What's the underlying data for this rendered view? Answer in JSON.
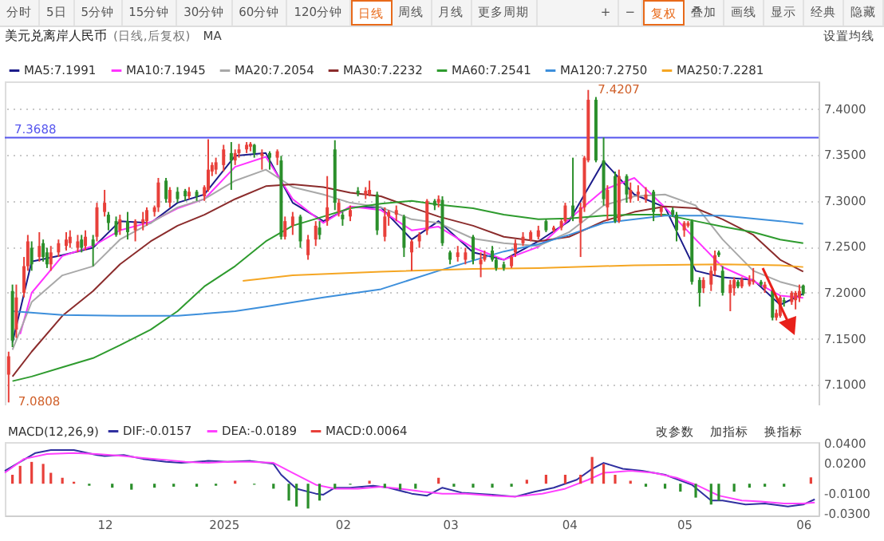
{
  "chart_data": [
    {
      "type": "candlestick",
      "title": "美元兑离岸人民币",
      "subtitle": "(日线,后复权)",
      "annotations": [
        "分时",
        "5日",
        "5分钟",
        "15分钟",
        "30分钟",
        "60分钟",
        "120分钟",
        "日线",
        "周线",
        "月线",
        "更多周期",
        "+",
        "−",
        "复权",
        "叠加",
        "画线",
        "显示",
        "经典",
        "隐藏",
        "MA",
        "设置均线",
        {
          "text": "7.4207",
          "x": "2025-04-06",
          "y": 7.4207
        },
        {
          "text": "7.0808",
          "x": "2024-11-06",
          "y": 7.0808
        }
      ],
      "x": [
        "2024-11-06",
        "2024-11-07",
        "2024-11-08",
        "2024-11-10",
        "2024-11-11",
        "2024-11-12",
        "2024-11-14",
        "2024-11-15",
        "2024-11-16",
        "2024-11-17",
        "2024-11-19",
        "2024-11-21",
        "2024-11-22",
        "2024-11-24",
        "2024-11-25",
        "2024-11-26",
        "2024-11-28",
        "2024-11-29",
        "2024-12-01",
        "2024-12-02",
        "2024-12-04",
        "2024-12-05",
        "2024-12-07",
        "2024-12-09",
        "2024-12-11",
        "2024-12-12",
        "2024-12-14",
        "2024-12-15",
        "2024-12-17",
        "2024-12-18",
        "2024-12-20",
        "2024-12-22",
        "2024-12-23",
        "2024-12-25",
        "2024-12-27",
        "2024-12-28",
        "2024-12-29",
        "2024-12-30",
        "2025-01-01",
        "2025-01-03",
        "2025-01-04",
        "2025-01-05",
        "2025-01-07",
        "2025-01-08",
        "2025-01-09",
        "2025-01-11",
        "2025-01-13",
        "2025-01-15",
        "2025-01-16",
        "2025-01-17",
        "2025-01-19",
        "2025-01-21",
        "2025-01-23",
        "2025-01-25",
        "2025-01-26",
        "2025-01-28",
        "2025-01-30",
        "2025-01-31",
        "2025-02-01",
        "2025-02-03",
        "2025-02-05",
        "2025-02-07",
        "2025-02-08",
        "2025-02-10",
        "2025-02-12",
        "2025-02-13",
        "2025-02-15",
        "2025-02-17",
        "2025-02-19",
        "2025-02-21",
        "2025-02-23",
        "2025-02-25",
        "2025-02-26",
        "2025-02-27",
        "2025-03-01",
        "2025-03-03",
        "2025-03-05",
        "2025-03-07",
        "2025-03-09",
        "2025-03-10",
        "2025-03-12",
        "2025-03-13",
        "2025-03-15",
        "2025-03-17",
        "2025-03-18",
        "2025-03-20",
        "2025-03-22",
        "2025-03-24",
        "2025-03-26",
        "2025-03-28",
        "2025-03-30",
        "2025-03-31",
        "2025-04-02",
        "2025-04-04",
        "2025-04-05",
        "2025-04-06",
        "2025-04-08",
        "2025-04-10",
        "2025-04-11",
        "2025-04-13",
        "2025-04-14",
        "2025-04-16",
        "2025-04-17",
        "2025-04-19",
        "2025-04-21",
        "2025-04-23",
        "2025-04-25",
        "2025-04-28",
        "2025-04-29",
        "2025-05-01",
        "2025-05-02",
        "2025-05-03",
        "2025-05-05",
        "2025-05-06",
        "2025-05-08",
        "2025-05-09",
        "2025-05-10",
        "2025-05-11",
        "2025-05-13",
        "2025-05-14",
        "2025-05-15",
        "2025-05-16",
        "2025-05-18",
        "2025-05-19",
        "2025-05-21",
        "2025-05-22",
        "2025-05-24",
        "2025-05-25",
        "2025-05-26",
        "2025-05-27",
        "2025-05-29",
        "2025-05-30",
        "2025-05-31",
        "2025-06-01"
      ],
      "ohlc": [
        [
          7.111,
          7.136,
          7.0808,
          7.131
        ],
        [
          7.202,
          7.209,
          7.141,
          7.148
        ],
        [
          7.16,
          7.209,
          7.151,
          7.195
        ],
        [
          7.2,
          7.239,
          7.195,
          7.229
        ],
        [
          7.229,
          7.263,
          7.224,
          7.256
        ],
        [
          7.249,
          7.256,
          7.224,
          7.231
        ],
        [
          7.239,
          7.266,
          7.234,
          7.251
        ],
        [
          7.254,
          7.258,
          7.234,
          7.239
        ],
        [
          7.244,
          7.249,
          7.227,
          7.231
        ],
        [
          7.231,
          7.251,
          7.224,
          7.244
        ],
        [
          7.244,
          7.258,
          7.239,
          7.254
        ],
        [
          7.251,
          7.266,
          7.246,
          7.258
        ],
        [
          7.254,
          7.268,
          7.249,
          7.261
        ],
        [
          7.249,
          7.263,
          7.244,
          7.256
        ],
        [
          7.258,
          7.263,
          7.244,
          7.249
        ],
        [
          7.251,
          7.268,
          7.246,
          7.261
        ],
        [
          7.258,
          7.263,
          7.229,
          7.251
        ],
        [
          7.261,
          7.298,
          7.256,
          7.293
        ],
        [
          7.288,
          7.312,
          7.283,
          7.298
        ],
        [
          7.285,
          7.288,
          7.268,
          7.276
        ],
        [
          7.278,
          7.283,
          7.261,
          7.263
        ],
        [
          7.268,
          7.285,
          7.263,
          7.28
        ],
        [
          7.278,
          7.288,
          7.258,
          7.266
        ],
        [
          7.268,
          7.28,
          7.256,
          7.278
        ],
        [
          7.276,
          7.288,
          7.268,
          7.28
        ],
        [
          7.278,
          7.293,
          7.273,
          7.29
        ],
        [
          7.288,
          7.295,
          7.283,
          7.293
        ],
        [
          7.293,
          7.325,
          7.288,
          7.32
        ],
        [
          7.322,
          7.325,
          7.298,
          7.302
        ],
        [
          7.298,
          7.315,
          7.293,
          7.312
        ],
        [
          7.31,
          7.315,
          7.298,
          7.302
        ],
        [
          7.311,
          7.313,
          7.3,
          7.305
        ],
        [
          7.305,
          7.315,
          7.302,
          7.31
        ],
        [
          7.31,
          7.312,
          7.3,
          7.305
        ],
        [
          7.305,
          7.317,
          7.3,
          7.315
        ],
        [
          7.312,
          7.367,
          7.31,
          7.334
        ],
        [
          7.332,
          7.342,
          7.327,
          7.339
        ],
        [
          7.334,
          7.347,
          7.329,
          7.342
        ],
        [
          7.339,
          7.361,
          7.332,
          7.356
        ],
        [
          7.352,
          7.364,
          7.312,
          7.344
        ],
        [
          7.344,
          7.356,
          7.339,
          7.352
        ],
        [
          7.352,
          7.362,
          7.347,
          7.356
        ],
        [
          7.356,
          7.364,
          7.352,
          7.361
        ],
        [
          7.359,
          7.364,
          7.354,
          7.362
        ],
        [
          7.361,
          7.362,
          7.347,
          7.352
        ],
        [
          7.349,
          7.356,
          7.334,
          7.352
        ],
        [
          7.352,
          7.354,
          7.334,
          7.347
        ],
        [
          7.347,
          7.356,
          7.339,
          7.354
        ],
        [
          7.344,
          7.349,
          7.258,
          7.261
        ],
        [
          7.261,
          7.283,
          7.258,
          7.278
        ],
        [
          7.273,
          7.288,
          7.263,
          7.283
        ],
        [
          7.283,
          7.285,
          7.249,
          7.256
        ],
        [
          7.241,
          7.263,
          7.236,
          7.258
        ],
        [
          7.258,
          7.278,
          7.251,
          7.273
        ],
        [
          7.271,
          7.278,
          7.258,
          7.263
        ],
        [
          7.278,
          7.327,
          7.273,
          7.293
        ],
        [
          7.356,
          7.366,
          7.29,
          7.298
        ],
        [
          7.288,
          7.302,
          7.283,
          7.298
        ],
        [
          7.285,
          7.288,
          7.273,
          7.28
        ],
        [
          7.283,
          7.295,
          7.278,
          7.29
        ],
        [
          7.311,
          7.315,
          7.305,
          7.308
        ],
        [
          7.307,
          7.315,
          7.302,
          7.311
        ],
        [
          7.307,
          7.322,
          7.305,
          7.312
        ],
        [
          7.307,
          7.31,
          7.263,
          7.268
        ],
        [
          7.261,
          7.293,
          7.256,
          7.283
        ],
        [
          7.283,
          7.29,
          7.273,
          7.288
        ],
        [
          7.285,
          7.295,
          7.278,
          7.29
        ],
        [
          7.283,
          7.285,
          7.239,
          7.249
        ],
        [
          7.244,
          7.258,
          7.224,
          7.256
        ],
        [
          7.256,
          7.266,
          7.249,
          7.263
        ],
        [
          7.268,
          7.302,
          7.263,
          7.3
        ],
        [
          7.3,
          7.302,
          7.29,
          7.295
        ],
        [
          7.298,
          7.306,
          7.293,
          7.302
        ],
        [
          7.301,
          7.305,
          7.251,
          7.254
        ],
        [
          7.244,
          7.246,
          7.231,
          7.236
        ],
        [
          7.239,
          7.251,
          7.234,
          7.244
        ],
        [
          7.236,
          7.249,
          7.231,
          7.244
        ],
        [
          7.261,
          7.263,
          7.231,
          7.236
        ],
        [
          7.231,
          7.244,
          7.217,
          7.236
        ],
        [
          7.236,
          7.246,
          7.234,
          7.241
        ],
        [
          7.246,
          7.251,
          7.234,
          7.236
        ],
        [
          7.236,
          7.239,
          7.224,
          7.227
        ],
        [
          7.231,
          7.234,
          7.224,
          7.227
        ],
        [
          7.229,
          7.241,
          7.227,
          7.239
        ],
        [
          7.244,
          7.258,
          7.239,
          7.254
        ],
        [
          7.254,
          7.266,
          7.251,
          7.261
        ],
        [
          7.258,
          7.268,
          7.256,
          7.266
        ],
        [
          7.261,
          7.273,
          7.258,
          7.268
        ],
        [
          7.278,
          7.28,
          7.266,
          7.268
        ],
        [
          7.268,
          7.273,
          7.266,
          7.271
        ],
        [
          7.271,
          7.28,
          7.268,
          7.278
        ],
        [
          7.278,
          7.298,
          7.276,
          7.295
        ],
        [
          7.295,
          7.347,
          7.278,
          7.283
        ],
        [
          7.276,
          7.298,
          7.239,
          7.293
        ],
        [
          7.293,
          7.349,
          7.288,
          7.347
        ],
        [
          7.344,
          7.4207,
          7.342,
          7.41
        ],
        [
          7.41,
          7.413,
          7.342,
          7.344
        ],
        [
          7.344,
          7.369,
          7.295,
          7.302
        ],
        [
          7.293,
          7.317,
          7.278,
          7.312
        ],
        [
          7.327,
          7.332,
          7.276,
          7.278
        ],
        [
          7.278,
          7.334,
          7.276,
          7.327
        ],
        [
          7.327,
          7.329,
          7.298,
          7.307
        ],
        [
          7.302,
          7.32,
          7.298,
          7.312
        ],
        [
          7.307,
          7.317,
          7.3,
          7.31
        ],
        [
          7.302,
          7.315,
          7.298,
          7.307
        ],
        [
          7.31,
          7.312,
          7.278,
          7.288
        ],
        [
          7.288,
          7.295,
          7.283,
          7.293
        ],
        [
          7.29,
          7.293,
          7.283,
          7.285
        ],
        [
          7.285,
          7.288,
          7.256,
          7.268
        ],
        [
          7.268,
          7.278,
          7.261,
          7.276
        ],
        [
          7.273,
          7.278,
          7.271,
          7.276
        ],
        [
          7.278,
          7.28,
          7.209,
          7.212
        ],
        [
          7.214,
          7.217,
          7.185,
          7.2
        ],
        [
          7.205,
          7.217,
          7.2,
          7.214
        ],
        [
          7.209,
          7.229,
          7.202,
          7.224
        ],
        [
          7.224,
          7.246,
          7.219,
          7.241
        ],
        [
          7.244,
          7.246,
          7.239,
          7.241
        ],
        [
          7.224,
          7.229,
          7.197,
          7.2
        ],
        [
          7.2,
          7.214,
          7.18,
          7.209
        ],
        [
          7.205,
          7.217,
          7.197,
          7.214
        ],
        [
          7.212,
          7.214,
          7.205,
          7.207
        ],
        [
          7.207,
          7.217,
          7.205,
          7.214
        ],
        [
          7.209,
          7.219,
          7.207,
          7.214
        ],
        [
          7.212,
          7.227,
          7.209,
          7.214
        ],
        [
          7.212,
          7.214,
          7.207,
          7.209
        ],
        [
          7.205,
          7.212,
          7.2,
          7.209
        ],
        [
          7.202,
          7.205,
          7.17,
          7.173
        ],
        [
          7.173,
          7.182,
          7.17,
          7.178
        ],
        [
          7.175,
          7.197,
          7.173,
          7.195
        ],
        [
          7.192,
          7.195,
          7.185,
          7.19
        ],
        [
          7.19,
          7.202,
          7.187,
          7.2
        ],
        [
          7.192,
          7.202,
          7.182,
          7.2
        ],
        [
          7.195,
          7.209,
          7.19,
          7.202
        ],
        [
          7.208,
          7.209,
          7.197,
          7.199
        ]
      ],
      "colors": [
        "#e8403a",
        "#2b8f2b",
        "#e8403a",
        "#e8403a",
        "#e8403a",
        "#2b8f2b",
        "#e8403a",
        "#2b8f2b",
        "#2b8f2b",
        "#e8403a",
        "#e8403a",
        "#e8403a",
        "#e8403a",
        "#e8403a",
        "#2b8f2b",
        "#e8403a",
        "#2b8f2b",
        "#e8403a",
        "#e8403a",
        "#2b8f2b",
        "#2b8f2b",
        "#e8403a",
        "#2b8f2b",
        "#e8403a",
        "#e8403a",
        "#e8403a",
        "#e8403a",
        "#e8403a",
        "#2b8f2b",
        "#e8403a",
        "#2b8f2b",
        "#2b8f2b",
        "#e8403a",
        "#2b8f2b",
        "#e8403a",
        "#e8403a",
        "#e8403a",
        "#e8403a",
        "#e8403a",
        "#2b8f2b",
        "#e8403a",
        "#e8403a",
        "#e8403a",
        "#e8403a",
        "#2b8f2b",
        "#e8403a",
        "#2b8f2b",
        "#e8403a",
        "#2b8f2b",
        "#e8403a",
        "#e8403a",
        "#2b8f2b",
        "#e8403a",
        "#e8403a",
        "#2b8f2b",
        "#e8403a",
        "#2b8f2b",
        "#e8403a",
        "#2b8f2b",
        "#e8403a",
        "#2b8f2b",
        "#e8403a",
        "#e8403a",
        "#2b8f2b",
        "#e8403a",
        "#e8403a",
        "#e8403a",
        "#2b8f2b",
        "#e8403a",
        "#e8403a",
        "#e8403a",
        "#2b8f2b",
        "#e8403a",
        "#2b8f2b",
        "#2b8f2b",
        "#e8403a",
        "#e8403a",
        "#2b8f2b",
        "#e8403a",
        "#e8403a",
        "#2b8f2b",
        "#2b8f2b",
        "#2b8f2b",
        "#e8403a",
        "#e8403a",
        "#e8403a",
        "#e8403a",
        "#e8403a",
        "#2b8f2b",
        "#e8403a",
        "#e8403a",
        "#e8403a",
        "#2b8f2b",
        "#e8403a",
        "#e8403a",
        "#e8403a",
        "#2b8f2b",
        "#2b8f2b",
        "#e8403a",
        "#2b8f2b",
        "#e8403a",
        "#2b8f2b",
        "#e8403a",
        "#e8403a",
        "#e8403a",
        "#2b8f2b",
        "#e8403a",
        "#2b8f2b",
        "#2b8f2b",
        "#e8403a",
        "#e8403a",
        "#2b8f2b",
        "#2b8f2b",
        "#e8403a",
        "#e8403a",
        "#e8403a",
        "#2b8f2b",
        "#2b8f2b",
        "#e8403a",
        "#e8403a",
        "#2b8f2b",
        "#e8403a",
        "#e8403a",
        "#e8403a",
        "#2b8f2b",
        "#e8403a",
        "#2b8f2b",
        "#e8403a",
        "#e8403a",
        "#2b8f2b",
        "#e8403a",
        "#e8403a",
        "#e8403a",
        "#2b8f2b"
      ],
      "series": [
        {
          "name": "MA5:7.1991",
          "type": "line",
          "color": "#1c1c8a",
          "x": [
            "2024-11-07",
            "2024-11-12",
            "2024-11-20",
            "2024-11-28",
            "2024-12-05",
            "2024-12-13",
            "2024-12-20",
            "2024-12-27",
            "2025-01-04",
            "2025-01-12",
            "2025-01-19",
            "2025-01-27",
            "2025-02-03",
            "2025-02-11",
            "2025-02-19",
            "2025-02-26",
            "2025-03-07",
            "2025-03-15",
            "2025-03-24",
            "2025-04-01",
            "2025-04-10",
            "2025-04-18",
            "2025-04-26",
            "2025-05-04",
            "2025-05-11",
            "2025-05-19",
            "2025-05-26",
            "2025-06-01"
          ],
          "values": [
            7.146,
            7.234,
            7.241,
            7.249,
            7.278,
            7.276,
            7.298,
            7.307,
            7.349,
            7.352,
            7.298,
            7.278,
            7.293,
            7.293,
            7.258,
            7.278,
            7.244,
            7.236,
            7.256,
            7.278,
            7.343,
            7.307,
            7.293,
            7.224,
            7.217,
            7.214,
            7.187,
            7.1991
          ]
        },
        {
          "name": "MA10:7.1945",
          "type": "line",
          "color": "#ff33ff",
          "x": [
            "2024-11-09",
            "2024-11-12",
            "2024-11-20",
            "2024-11-28",
            "2024-12-05",
            "2024-12-13",
            "2024-12-20",
            "2024-12-27",
            "2025-01-04",
            "2025-01-12",
            "2025-01-19",
            "2025-01-27",
            "2025-02-03",
            "2025-02-11",
            "2025-02-19",
            "2025-02-26",
            "2025-03-07",
            "2025-03-15",
            "2025-03-24",
            "2025-04-01",
            "2025-04-10",
            "2025-04-18",
            "2025-04-26",
            "2025-05-04",
            "2025-05-11",
            "2025-05-19",
            "2025-05-26",
            "2025-06-01"
          ],
          "values": [
            7.155,
            7.2,
            7.24,
            7.251,
            7.268,
            7.277,
            7.292,
            7.302,
            7.337,
            7.348,
            7.302,
            7.276,
            7.294,
            7.29,
            7.268,
            7.272,
            7.249,
            7.236,
            7.25,
            7.28,
            7.312,
            7.325,
            7.293,
            7.258,
            7.228,
            7.213,
            7.197,
            7.1945
          ]
        },
        {
          "name": "MA20:7.2054",
          "type": "line",
          "color": "#a8a8a8",
          "x": [
            "2024-11-07",
            "2024-11-12",
            "2024-11-20",
            "2024-11-28",
            "2024-12-05",
            "2024-12-13",
            "2024-12-20",
            "2024-12-27",
            "2025-01-04",
            "2025-01-12",
            "2025-01-19",
            "2025-01-27",
            "2025-02-03",
            "2025-02-11",
            "2025-02-19",
            "2025-02-26",
            "2025-03-07",
            "2025-03-15",
            "2025-03-24",
            "2025-04-01",
            "2025-04-10",
            "2025-04-18",
            "2025-04-26",
            "2025-05-04",
            "2025-05-11",
            "2025-05-19",
            "2025-05-26",
            "2025-06-01"
          ],
          "values": [
            7.138,
            7.19,
            7.219,
            7.229,
            7.258,
            7.276,
            7.293,
            7.302,
            7.322,
            7.334,
            7.315,
            7.307,
            7.298,
            7.293,
            7.28,
            7.276,
            7.259,
            7.254,
            7.251,
            7.266,
            7.295,
            7.305,
            7.307,
            7.295,
            7.258,
            7.224,
            7.212,
            7.2054
          ]
        },
        {
          "name": "MA30:7.2232",
          "type": "line",
          "color": "#8b2c2c",
          "x": [
            "2024-11-07",
            "2024-11-12",
            "2024-11-20",
            "2024-11-28",
            "2024-12-05",
            "2024-12-13",
            "2024-12-20",
            "2024-12-27",
            "2025-01-04",
            "2025-01-12",
            "2025-01-19",
            "2025-01-27",
            "2025-02-03",
            "2025-02-11",
            "2025-02-19",
            "2025-02-26",
            "2025-03-07",
            "2025-03-15",
            "2025-03-24",
            "2025-04-01",
            "2025-04-10",
            "2025-04-18",
            "2025-04-26",
            "2025-05-04",
            "2025-05-11",
            "2025-05-19",
            "2025-05-26",
            "2025-06-01"
          ],
          "values": [
            7.109,
            7.136,
            7.175,
            7.202,
            7.231,
            7.256,
            7.273,
            7.285,
            7.302,
            7.316,
            7.318,
            7.315,
            7.309,
            7.305,
            7.293,
            7.283,
            7.273,
            7.261,
            7.256,
            7.261,
            7.278,
            7.288,
            7.294,
            7.292,
            7.28,
            7.263,
            7.236,
            7.2232
          ]
        },
        {
          "name": "MA60:7.2541",
          "type": "line",
          "color": "#2e9b2e",
          "x": [
            "2024-11-07",
            "2024-11-12",
            "2024-11-20",
            "2024-11-28",
            "2024-12-05",
            "2024-12-13",
            "2024-12-20",
            "2024-12-27",
            "2025-01-04",
            "2025-01-12",
            "2025-01-19",
            "2025-01-27",
            "2025-02-03",
            "2025-02-11",
            "2025-02-19",
            "2025-02-26",
            "2025-03-07",
            "2025-03-15",
            "2025-03-24",
            "2025-04-01",
            "2025-04-10",
            "2025-04-18",
            "2025-04-26",
            "2025-05-04",
            "2025-05-11",
            "2025-05-19",
            "2025-05-26",
            "2025-06-01"
          ],
          "values": [
            7.104,
            7.109,
            7.119,
            7.129,
            7.143,
            7.16,
            7.18,
            7.207,
            7.229,
            7.256,
            7.273,
            7.283,
            7.292,
            7.297,
            7.3,
            7.296,
            7.292,
            7.285,
            7.28,
            7.281,
            7.284,
            7.285,
            7.285,
            7.278,
            7.272,
            7.266,
            7.258,
            7.2541
          ]
        },
        {
          "name": "MA120:7.2750",
          "type": "line",
          "color": "#3d8fdb",
          "x": [
            "2024-11-07",
            "2024-11-20",
            "2024-12-05",
            "2024-12-20",
            "2025-01-04",
            "2025-01-12",
            "2025-01-27",
            "2025-02-11",
            "2025-02-26",
            "2025-03-15",
            "2025-03-24",
            "2025-04-01",
            "2025-04-10",
            "2025-04-26",
            "2025-05-11",
            "2025-05-26",
            "2025-06-01"
          ],
          "values": [
            7.18,
            7.176,
            7.175,
            7.175,
            7.18,
            7.185,
            7.195,
            7.204,
            7.224,
            7.245,
            7.253,
            7.263,
            7.276,
            7.284,
            7.284,
            7.278,
            7.275
          ]
        },
        {
          "name": "MA250:7.2281",
          "type": "line",
          "color": "#f5a623",
          "x": [
            "2025-01-06",
            "2025-01-19",
            "2025-02-11",
            "2025-03-07",
            "2025-03-24",
            "2025-04-18",
            "2025-05-11",
            "2025-05-26",
            "2025-06-01"
          ],
          "values": [
            7.213,
            7.219,
            7.223,
            7.226,
            7.227,
            7.23,
            7.231,
            7.23,
            7.2281
          ]
        }
      ],
      "xlim": [
        "2024-11-05",
        "2025-06-05"
      ],
      "ylim": [
        7.062,
        7.43
      ],
      "yticks": [
        {
          "value": 7.1,
          "label": "7.1000"
        },
        {
          "value": 7.15,
          "label": "7.1500"
        },
        {
          "value": 7.2,
          "label": "7.2000"
        },
        {
          "value": 7.25,
          "label": "7.2500"
        },
        {
          "value": 7.3,
          "label": "7.3000"
        },
        {
          "value": 7.35,
          "label": "7.3500"
        },
        {
          "value": 7.4,
          "label": "7.4000"
        }
      ],
      "ref_lines": [
        {
          "axis": "y",
          "value": 7.3688,
          "label": "7.3688",
          "color": "#5555ee"
        }
      ],
      "grid": "y",
      "legend": "top",
      "tick_labels": "y"
    },
    {
      "type": "line",
      "annotations": [
        "MACD(12,26,9)",
        "改参数",
        "加指标",
        "换指标"
      ],
      "series": [
        {
          "name": "DIF:-0.0157",
          "type": "line",
          "color": "#3030a0",
          "x": [
            "2024-11-05",
            "2024-11-09",
            "2024-11-13",
            "2024-11-17",
            "2024-11-23",
            "2024-11-29",
            "2024-12-01",
            "2024-12-06",
            "2024-12-11",
            "2024-12-17",
            "2024-12-21",
            "2024-12-28",
            "2025-01-02",
            "2025-01-08",
            "2025-01-14",
            "2025-01-16",
            "2025-01-20",
            "2025-01-25",
            "2025-01-27",
            "2025-01-30",
            "2025-02-03",
            "2025-02-09",
            "2025-02-13",
            "2025-02-19",
            "2025-02-23",
            "2025-02-27",
            "2025-03-04",
            "2025-03-12",
            "2025-03-18",
            "2025-03-23",
            "2025-03-28",
            "2025-04-03",
            "2025-04-07",
            "2025-04-10",
            "2025-04-15",
            "2025-04-20",
            "2025-04-26",
            "2025-05-03",
            "2025-05-08",
            "2025-05-11",
            "2025-05-17",
            "2025-05-22",
            "2025-05-28",
            "2025-06-01",
            "2025-06-04"
          ],
          "values": [
            0.013,
            0.022,
            0.031,
            0.034,
            0.034,
            0.029,
            0.028,
            0.029,
            0.025,
            0.022,
            0.021,
            0.023,
            0.022,
            0.023,
            0.02,
            0.009,
            -0.005,
            -0.01,
            -0.011,
            -0.004,
            -0.004,
            -0.002,
            -0.004,
            -0.01,
            -0.012,
            -0.004,
            -0.009,
            -0.011,
            -0.013,
            -0.008,
            -0.004,
            0.004,
            0.015,
            0.021,
            0.015,
            0.013,
            0.009,
            -0.001,
            -0.017,
            -0.017,
            -0.021,
            -0.02,
            -0.023,
            -0.021,
            -0.0157
          ]
        },
        {
          "name": "DEA:-0.0189",
          "type": "line",
          "color": "#ff40ff",
          "x": [
            "2024-11-05",
            "2024-11-10",
            "2024-11-16",
            "2024-11-23",
            "2024-11-29",
            "2024-12-06",
            "2024-12-11",
            "2024-12-17",
            "2024-12-22",
            "2024-12-28",
            "2025-01-02",
            "2025-01-08",
            "2025-01-14",
            "2025-01-19",
            "2025-01-25",
            "2025-01-30",
            "2025-02-05",
            "2025-02-11",
            "2025-02-16",
            "2025-02-22",
            "2025-02-27",
            "2025-03-05",
            "2025-03-12",
            "2025-03-18",
            "2025-03-25",
            "2025-03-31",
            "2025-04-06",
            "2025-04-10",
            "2025-04-17",
            "2025-04-23",
            "2025-04-29",
            "2025-05-04",
            "2025-05-10",
            "2025-05-16",
            "2025-05-21",
            "2025-05-27",
            "2025-06-01",
            "2025-06-04"
          ],
          "values": [
            0.011,
            0.025,
            0.03,
            0.031,
            0.03,
            0.028,
            0.026,
            0.024,
            0.022,
            0.021,
            0.022,
            0.022,
            0.021,
            0.011,
            -0.001,
            -0.005,
            -0.005,
            -0.003,
            -0.005,
            -0.008,
            -0.01,
            -0.01,
            -0.012,
            -0.013,
            -0.01,
            -0.005,
            0.004,
            0.011,
            0.013,
            0.011,
            0.006,
            -0.001,
            -0.012,
            -0.017,
            -0.018,
            -0.02,
            -0.02,
            -0.0189
          ]
        },
        {
          "name": "MACD:0.0064",
          "type": "bar",
          "color": "#e8403a",
          "x": [
            "2024-11-07",
            "2024-11-09",
            "2024-11-12",
            "2024-11-15",
            "2024-11-17",
            "2024-11-20",
            "2024-11-23",
            "2025-01-04",
            "2025-02-08",
            "2025-02-26",
            "2025-03-21",
            "2025-03-26",
            "2025-03-31",
            "2025-04-04",
            "2025-04-07",
            "2025-04-10",
            "2025-04-13",
            "2025-04-17",
            "2025-06-03"
          ],
          "values": [
            0.009,
            0.018,
            0.022,
            0.02,
            0.011,
            0.006,
            0.002,
            0.003,
            0.003,
            0.006,
            0.004,
            0.009,
            0.009,
            0.009,
            0.027,
            0.02,
            0.009,
            0.003,
            0.0064
          ]
        },
        {
          "type": "bar",
          "color": "#2b8f2b",
          "x": [
            "2024-11-27",
            "2024-12-03",
            "2024-12-08",
            "2024-12-14",
            "2024-12-19",
            "2024-12-25",
            "2024-12-30",
            "2025-01-09",
            "2025-01-14",
            "2025-01-18",
            "2025-01-20",
            "2025-01-23",
            "2025-01-26",
            "2025-01-30",
            "2025-02-03",
            "2025-02-12",
            "2025-02-16",
            "2025-02-20",
            "2025-03-02",
            "2025-03-07",
            "2025-03-12",
            "2025-03-17",
            "2025-04-21",
            "2025-04-26",
            "2025-04-30",
            "2025-05-04",
            "2025-05-08",
            "2025-05-10",
            "2025-05-14",
            "2025-05-18",
            "2025-05-22",
            "2025-05-27"
          ],
          "values": [
            -0.002,
            -0.004,
            -0.006,
            -0.004,
            -0.003,
            -0.003,
            -0.002,
            -0.001,
            -0.005,
            -0.017,
            -0.023,
            -0.025,
            -0.017,
            -0.005,
            -0.001,
            -0.004,
            -0.006,
            -0.005,
            -0.003,
            -0.004,
            -0.004,
            -0.003,
            -0.003,
            -0.005,
            -0.008,
            -0.014,
            -0.021,
            -0.017,
            -0.008,
            -0.004,
            -0.003,
            -0.003
          ]
        }
      ],
      "xlim": [
        "2024-11-05",
        "2025-06-05"
      ],
      "xticks": [
        {
          "value": "2024-12-01",
          "label": "12"
        },
        {
          "value": "2025-01-01",
          "label": "2025"
        },
        {
          "value": "2025-02-01",
          "label": "02"
        },
        {
          "value": "2025-03-01",
          "label": "03"
        },
        {
          "value": "2025-04-01",
          "label": "04"
        },
        {
          "value": "2025-05-01",
          "label": "05"
        },
        {
          "value": "2025-06-01",
          "label": "06"
        }
      ],
      "ylim": [
        -0.032,
        0.042
      ],
      "yticks": [
        {
          "value": 0.04,
          "label": "0.0400"
        },
        {
          "value": 0.02,
          "label": "0.0200"
        },
        {
          "value": -0.01,
          "label": "-0.0100"
        },
        {
          "value": -0.03,
          "label": "-0.0300"
        }
      ],
      "legend": "top"
    }
  ]
}
